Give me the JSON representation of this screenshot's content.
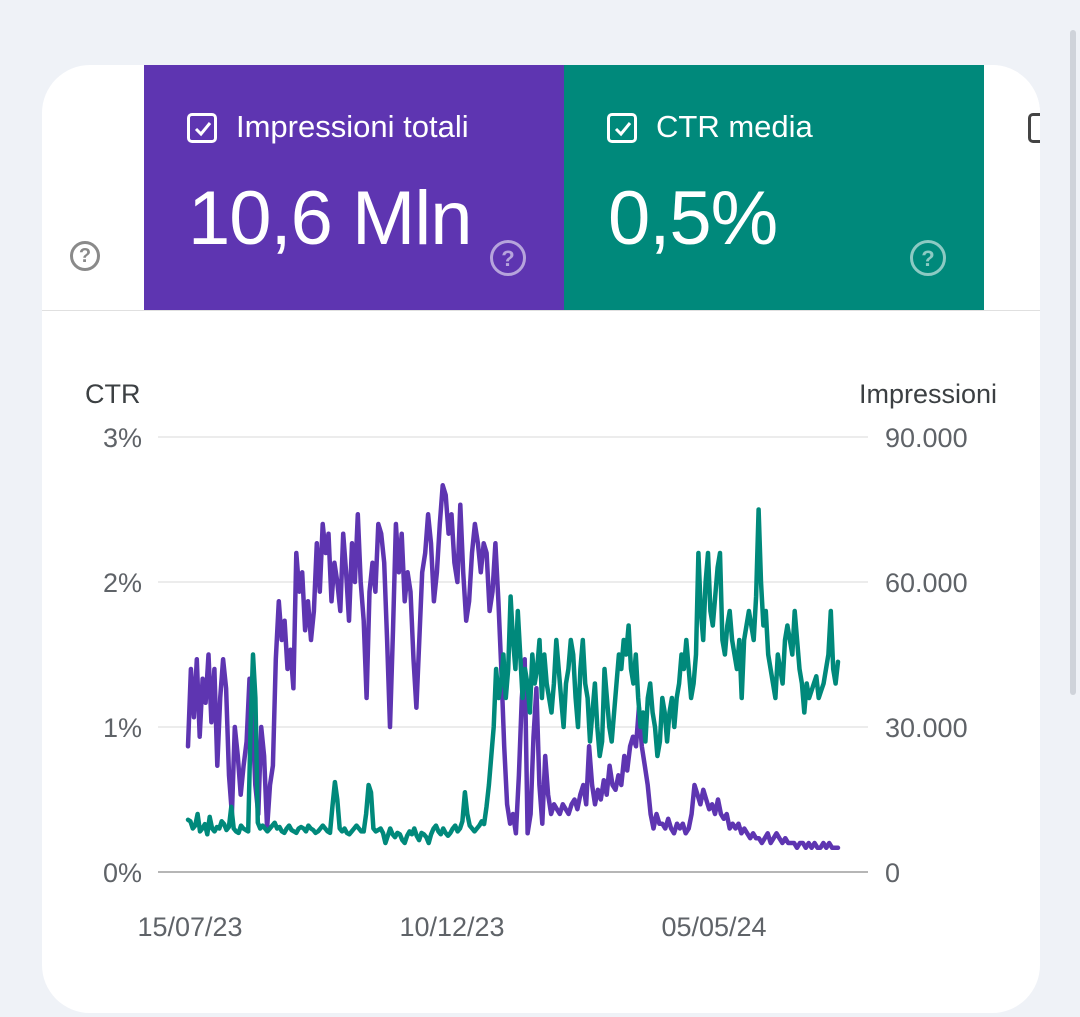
{
  "metrics": {
    "impressions": {
      "label": "Impressioni totali",
      "value": "10,6 Mln",
      "color": "#5e35b1",
      "checked": true
    },
    "ctr": {
      "label": "CTR media",
      "value": "0,5%",
      "color": "#00897b",
      "checked": true
    },
    "third": {
      "checked": false
    }
  },
  "help_icon": "?",
  "chart_data": {
    "type": "line",
    "left_axis_title": "CTR",
    "right_axis_title": "Impressioni",
    "left_ticks": [
      "0%",
      "1%",
      "2%",
      "3%"
    ],
    "right_ticks": [
      "0",
      "30.000",
      "60.000",
      "90.000"
    ],
    "x_ticks": [
      "15/07/23",
      "10/12/23",
      "05/05/24"
    ],
    "y_left_range": [
      0,
      3
    ],
    "y_right_range": [
      0,
      90000
    ],
    "grid": true,
    "series": [
      {
        "axis": "right",
        "color": "#5e35b1",
        "values": [
          26000,
          42000,
          32000,
          44000,
          28000,
          40000,
          35000,
          45000,
          31000,
          42000,
          22000,
          36000,
          44000,
          38000,
          20000,
          12000,
          30000,
          24000,
          16000,
          22000,
          27000,
          40000,
          32000,
          18000,
          12000,
          30000,
          24000,
          9000,
          18000,
          22000,
          44000,
          56000,
          48000,
          52000,
          42000,
          46000,
          38000,
          66000,
          58000,
          62000,
          50000,
          56000,
          48000,
          54000,
          68000,
          58000,
          72000,
          66000,
          70000,
          56000,
          64000,
          60000,
          54000,
          70000,
          62000,
          52000,
          68000,
          60000,
          74000,
          60000,
          52000,
          36000,
          58000,
          64000,
          58000,
          72000,
          70000,
          64000,
          48000,
          30000,
          50000,
          72000,
          62000,
          70000,
          56000,
          62000,
          58000,
          44000,
          34000,
          48000,
          62000,
          66000,
          74000,
          68000,
          56000,
          62000,
          72000,
          80000,
          78000,
          70000,
          74000,
          64000,
          60000,
          76000,
          62000,
          52000,
          56000,
          66000,
          72000,
          68000,
          62000,
          68000,
          66000,
          54000,
          58000,
          68000,
          56000,
          42000,
          26000,
          14000,
          10000,
          12000,
          8000,
          20000,
          36000,
          44000,
          8000,
          12000,
          28000,
          38000,
          18000,
          10000,
          24000,
          16000,
          12000,
          14000,
          13000,
          12000,
          14000,
          13000,
          12000,
          14000,
          15000,
          13000,
          16000,
          18000,
          14000,
          26000,
          18000,
          14000,
          17000,
          15000,
          19000,
          16000,
          22000,
          18000,
          17000,
          20000,
          18000,
          24000,
          21000,
          26000,
          28000,
          26000,
          34000,
          26000,
          22000,
          18000,
          12000,
          9000,
          12000,
          10000,
          10000,
          9000,
          11000,
          9000,
          8000,
          10000,
          9000,
          10000,
          8000,
          9000,
          12000,
          18000,
          16000,
          14000,
          17000,
          15000,
          13000,
          14000,
          12000,
          15000,
          12000,
          11000,
          12000,
          9000,
          10000,
          9000,
          10000,
          8000,
          9000,
          8000,
          7000,
          8000,
          7000,
          7000,
          6000,
          7000,
          8000,
          6000,
          7000,
          8000,
          7000,
          6000,
          7000,
          6000,
          6000,
          6000,
          5000,
          6000,
          6000,
          5000,
          6000,
          5000,
          6000,
          5000,
          5000,
          6000,
          5000,
          6000,
          5000,
          5000,
          5000
        ],
        "values_note": "daily series, evenly spaced from 15/07/23"
      },
      {
        "axis": "left",
        "color": "#00897b",
        "values": [
          0.36,
          0.35,
          0.3,
          0.32,
          0.4,
          0.28,
          0.3,
          0.33,
          0.26,
          0.38,
          0.3,
          0.28,
          0.31,
          0.3,
          0.35,
          0.33,
          0.29,
          0.31,
          0.45,
          0.3,
          0.28,
          0.27,
          0.32,
          0.3,
          0.29,
          0.28,
          1.0,
          1.5,
          1.2,
          0.34,
          0.3,
          0.32,
          0.3,
          0.28,
          0.3,
          0.32,
          0.34,
          0.3,
          0.31,
          0.28,
          0.27,
          0.3,
          0.32,
          0.29,
          0.28,
          0.27,
          0.3,
          0.31,
          0.3,
          0.28,
          0.32,
          0.3,
          0.29,
          0.27,
          0.28,
          0.3,
          0.32,
          0.3,
          0.28,
          0.27,
          0.45,
          0.62,
          0.5,
          0.3,
          0.28,
          0.3,
          0.27,
          0.26,
          0.28,
          0.3,
          0.32,
          0.3,
          0.28,
          0.28,
          0.4,
          0.6,
          0.55,
          0.3,
          0.28,
          0.29,
          0.3,
          0.27,
          0.2,
          0.25,
          0.3,
          0.26,
          0.24,
          0.27,
          0.26,
          0.22,
          0.2,
          0.25,
          0.28,
          0.26,
          0.3,
          0.25,
          0.22,
          0.27,
          0.26,
          0.24,
          0.2,
          0.26,
          0.3,
          0.32,
          0.28,
          0.26,
          0.3,
          0.27,
          0.25,
          0.27,
          0.3,
          0.32,
          0.28,
          0.3,
          0.35,
          0.55,
          0.4,
          0.32,
          0.3,
          0.28,
          0.3,
          0.32,
          0.35,
          0.33,
          0.45,
          0.6,
          0.8,
          1.0,
          1.4,
          1.2,
          1.3,
          1.5,
          1.2,
          1.4,
          1.9,
          1.6,
          1.4,
          1.8,
          1.5,
          1.2,
          1.4,
          1.3,
          1.1,
          1.5,
          1.3,
          1.4,
          1.6,
          1.2,
          1.5,
          1.3,
          1.2,
          1.1,
          1.3,
          1.6,
          1.4,
          1.2,
          1.0,
          1.3,
          1.4,
          1.6,
          1.5,
          1.2,
          1.0,
          1.4,
          1.6,
          1.3,
          1.2,
          0.9,
          1.1,
          1.3,
          1.0,
          0.8,
          0.9,
          1.4,
          1.2,
          1.0,
          0.9,
          1.1,
          1.3,
          1.5,
          1.4,
          1.6,
          1.5,
          1.7,
          1.4,
          1.3,
          1.5,
          1.2,
          1.0,
          1.1,
          0.9,
          1.2,
          1.3,
          1.1,
          1.0,
          0.8,
          0.9,
          1.2,
          1.1,
          0.9,
          1.1,
          1.2,
          1.0,
          1.2,
          1.3,
          1.5,
          1.4,
          1.6,
          1.4,
          1.2,
          1.3,
          1.5,
          2.2,
          1.8,
          1.6,
          2.0,
          2.2,
          1.8,
          1.7,
          1.9,
          2.1,
          2.2,
          1.6,
          1.5,
          1.7,
          1.8,
          1.6,
          1.5,
          1.4,
          1.6,
          1.2,
          1.6,
          1.7,
          1.8,
          1.7,
          1.6,
          1.9,
          2.5,
          2.0,
          1.7,
          1.8,
          1.5,
          1.4,
          1.3,
          1.2,
          1.5,
          1.4,
          1.3,
          1.6,
          1.7,
          1.6,
          1.5,
          1.8,
          1.6,
          1.4,
          1.3,
          1.1,
          1.3,
          1.2,
          1.25,
          1.3,
          1.35,
          1.2,
          1.25,
          1.3,
          1.4,
          1.5,
          1.8,
          1.4,
          1.3,
          1.45
        ]
      }
    ]
  }
}
